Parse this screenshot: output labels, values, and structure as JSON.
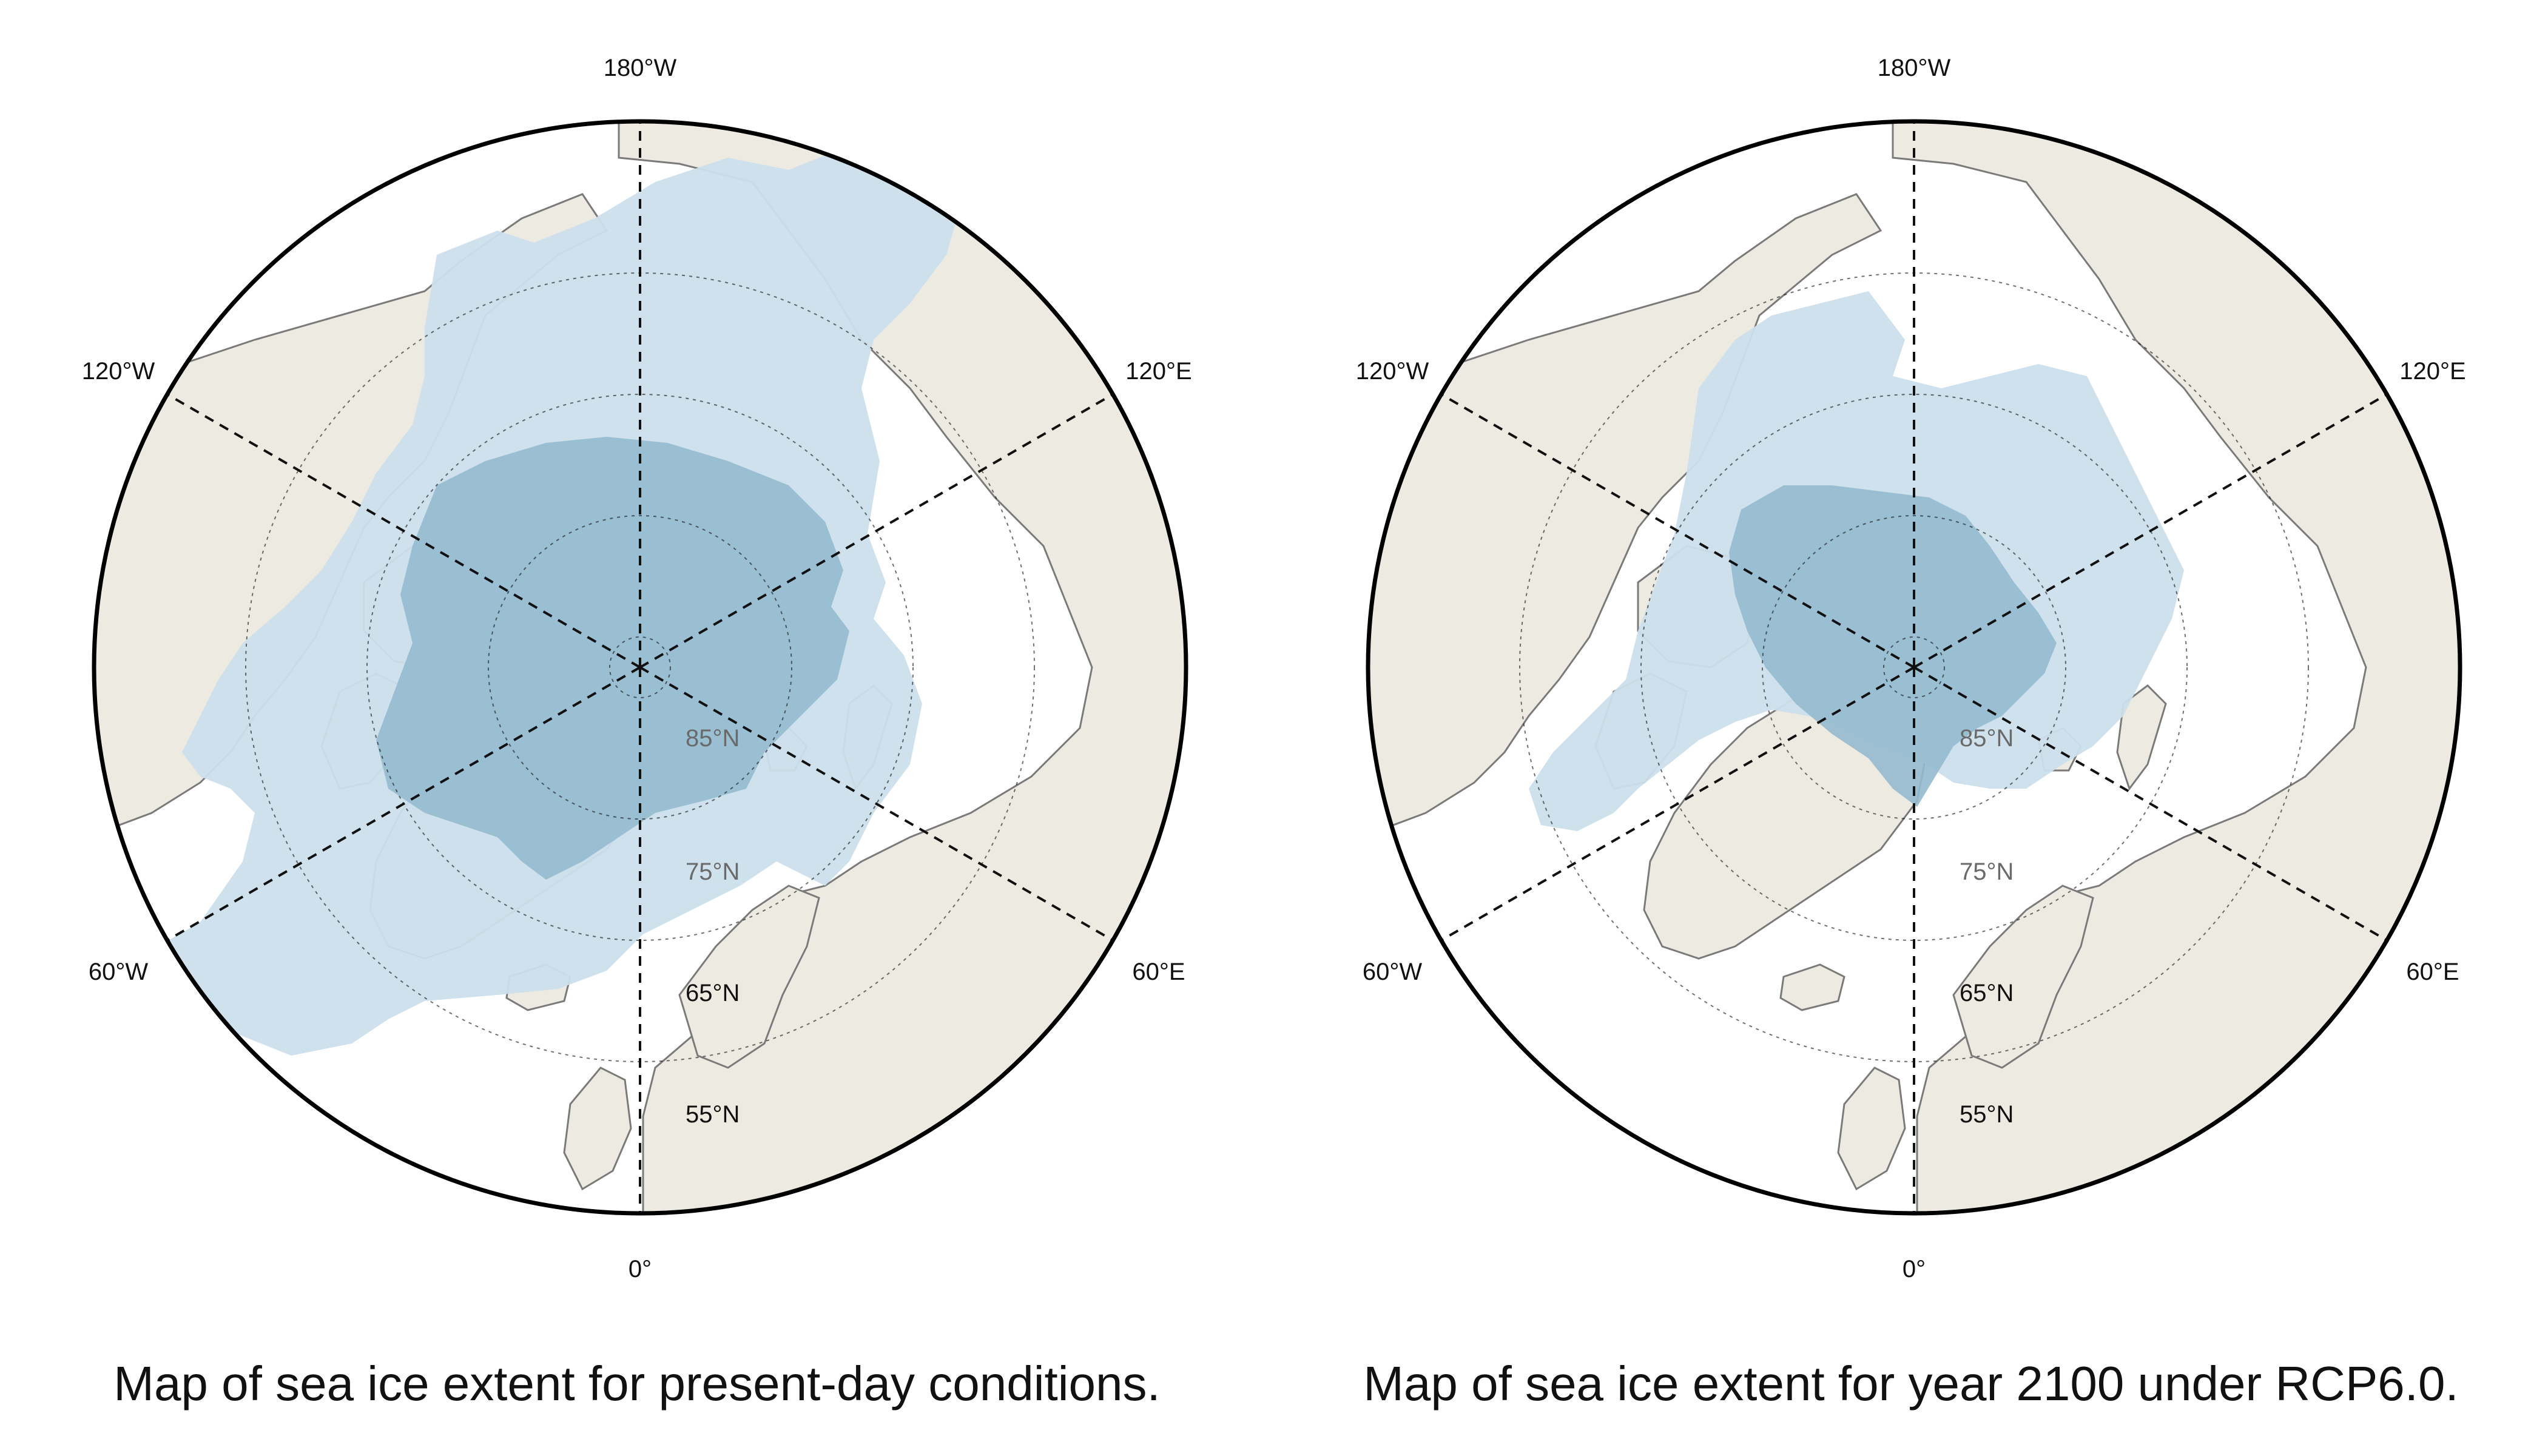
{
  "figure": {
    "panels": [
      {
        "id": "present",
        "caption": "Map of sea ice extent for present-day conditions.",
        "longitude_labels": [
          "180°W",
          "120°E",
          "60°E",
          "0°",
          "60°W",
          "120°W"
        ],
        "latitude_labels": [
          "85°N",
          "75°N",
          "65°N",
          "55°N"
        ]
      },
      {
        "id": "rcp60-2100",
        "caption": "Map of sea ice extent for year 2100 under RCP6.0.",
        "longitude_labels": [
          "180°W",
          "120°E",
          "60°E",
          "0°",
          "60°W",
          "120°W"
        ],
        "latitude_labels": [
          "85°N",
          "75°N",
          "65°N",
          "55°N"
        ]
      }
    ]
  },
  "colors": {
    "ocean": "#ffffff",
    "land": "#edebe1",
    "sea_ice_extent": "#cbdfeb",
    "sea_ice_dense": "#95bacf",
    "coastline": "#7a7a7a",
    "graticule": "#111111"
  }
}
